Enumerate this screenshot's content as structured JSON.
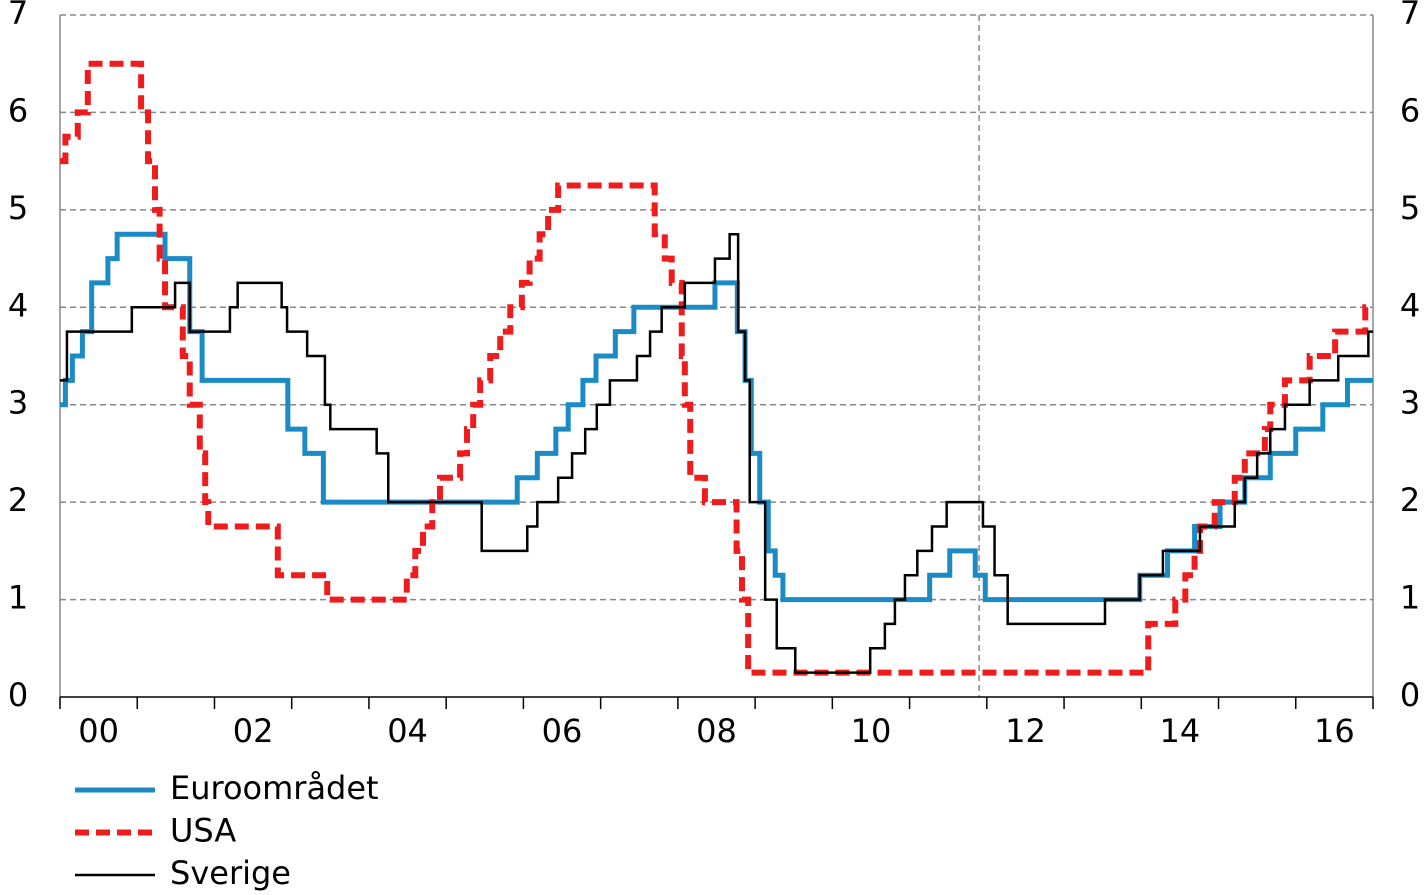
{
  "chart_data": {
    "type": "step",
    "xlim": [
      2000,
      2017
    ],
    "xticks": [
      {
        "value": 2000.5,
        "label": "00"
      },
      {
        "value": 2002.5,
        "label": "02"
      },
      {
        "value": 2004.5,
        "label": "04"
      },
      {
        "value": 2006.5,
        "label": "06"
      },
      {
        "value": 2008.5,
        "label": "08"
      },
      {
        "value": 2010.5,
        "label": "10"
      },
      {
        "value": 2012.5,
        "label": "12"
      },
      {
        "value": 2014.5,
        "label": "14"
      },
      {
        "value": 2016.5,
        "label": "16"
      }
    ],
    "xminorticks": [
      2000,
      2001,
      2002,
      2003,
      2004,
      2005,
      2006,
      2007,
      2008,
      2009,
      2010,
      2011,
      2012,
      2013,
      2014,
      2015,
      2016,
      2017
    ],
    "ylim": [
      0,
      7
    ],
    "yticks": [
      0,
      1,
      2,
      3,
      4,
      5,
      6,
      7
    ],
    "y2lim": [
      0,
      7
    ],
    "y2ticks": [
      0,
      1,
      2,
      3,
      4,
      5,
      6,
      7
    ],
    "grid": true,
    "vline": 2011.9,
    "legend": "bottom-left",
    "series": [
      {
        "name": "Euroområdet",
        "color": "#1a8bc4",
        "x": [
          2000,
          2000.07,
          2000.16,
          2000.29,
          2000.41,
          2000.62,
          2000.74,
          2001.36,
          2001.68,
          2001.84,
          2002.95,
          2003.17,
          2003.41,
          2005.92,
          2006.18,
          2006.42,
          2006.58,
          2006.77,
          2006.94,
          2007.19,
          2007.43,
          2008.48,
          2008.77,
          2008.87,
          2008.95,
          2009.06,
          2009.17,
          2009.26,
          2009.36,
          2011.26,
          2011.52,
          2011.85,
          2011.98,
          2013.98,
          2014.34,
          2014.69,
          2015.02,
          2015.34,
          2015.67,
          2016.0,
          2016.35,
          2016.67,
          2017
        ],
        "values": [
          3,
          3.25,
          3.5,
          3.75,
          4.25,
          4.5,
          4.75,
          4.5,
          3.75,
          3.25,
          2.75,
          2.5,
          2,
          2.25,
          2.5,
          2.75,
          3,
          3.25,
          3.5,
          3.75,
          4,
          4.25,
          3.75,
          3.25,
          2.5,
          2,
          1.5,
          1.25,
          1,
          1.25,
          1.5,
          1.25,
          1,
          1.25,
          1.5,
          1.75,
          2,
          2.25,
          2.5,
          2.75,
          3,
          3.25,
          3.25
        ]
      },
      {
        "name": "USA",
        "color": "#ee1c1c",
        "dashed": true,
        "x": [
          2000,
          2000.07,
          2000.23,
          2000.36,
          2001.05,
          2001.14,
          2001.23,
          2001.29,
          2001.36,
          2001.59,
          2001.68,
          2001.81,
          2001.88,
          2001.92,
          2002.82,
          2003.46,
          2004.49,
          2004.6,
          2004.7,
          2004.82,
          2004.92,
          2005.18,
          2005.27,
          2005.35,
          2005.44,
          2005.57,
          2005.7,
          2005.83,
          2005.98,
          2006.08,
          2006.21,
          2006.32,
          2006.45,
          2007.7,
          2007.83,
          2007.92,
          2008.05,
          2008.09,
          2008.16,
          2008.35,
          2008.76,
          2008.83,
          2008.91,
          2014.09,
          2014.44,
          2014.57,
          2014.69,
          2014.76,
          2014.95,
          2015.21,
          2015.34,
          2015.6,
          2015.67,
          2015.86,
          2016.18,
          2016.51,
          2016.9,
          2017
        ],
        "values": [
          5.5,
          5.75,
          6,
          6.5,
          6,
          5.5,
          5,
          4.5,
          4,
          3.5,
          3,
          2.5,
          2,
          1.75,
          1.25,
          1,
          1.25,
          1.5,
          1.75,
          2,
          2.25,
          2.5,
          2.75,
          3,
          3.25,
          3.5,
          3.75,
          4,
          4.25,
          4.5,
          4.75,
          5,
          5.25,
          4.75,
          4.5,
          4.25,
          3.5,
          3,
          2.25,
          2,
          1.5,
          1,
          0.25,
          0.75,
          1,
          1.25,
          1.5,
          1.75,
          2,
          2.25,
          2.5,
          2.75,
          3,
          3.25,
          3.5,
          3.75,
          4,
          4
        ]
      },
      {
        "name": "Sverige",
        "color": "#000000",
        "x": [
          2000,
          2000.09,
          2000.93,
          2001.49,
          2001.68,
          2002.2,
          2002.3,
          2002.87,
          2002.94,
          2003.2,
          2003.43,
          2003.5,
          2004.1,
          2004.25,
          2005.46,
          2006.05,
          2006.18,
          2006.45,
          2006.63,
          2006.8,
          2006.95,
          2007.12,
          2007.47,
          2007.64,
          2007.79,
          2008.09,
          2008.48,
          2008.67,
          2008.78,
          2008.87,
          2008.93,
          2009.13,
          2009.28,
          2009.52,
          2010.49,
          2010.68,
          2010.81,
          2010.94,
          2011.1,
          2011.29,
          2011.48,
          2011.95,
          2012.1,
          2012.27,
          2013.53,
          2013.98,
          2014.28,
          2014.76,
          2015.21,
          2015.34,
          2015.5,
          2015.67,
          2015.86,
          2016.18,
          2016.55,
          2016.94,
          2017
        ],
        "values": [
          3.25,
          3.75,
          4,
          4.25,
          3.75,
          4,
          4.25,
          4,
          3.75,
          3.5,
          3,
          2.75,
          2.5,
          2,
          1.5,
          1.75,
          2,
          2.25,
          2.5,
          2.75,
          3,
          3.25,
          3.5,
          3.75,
          4,
          4.25,
          4.5,
          4.75,
          3.75,
          3.25,
          2,
          1,
          0.5,
          0.25,
          0.5,
          0.75,
          1,
          1.25,
          1.5,
          1.75,
          2,
          1.75,
          1.25,
          0.75,
          1,
          1.25,
          1.5,
          1.75,
          2,
          2.25,
          2.5,
          2.75,
          3,
          3.25,
          3.5,
          3.75,
          3.75
        ]
      }
    ]
  }
}
